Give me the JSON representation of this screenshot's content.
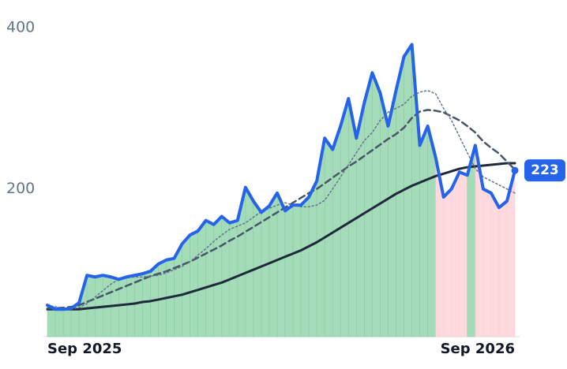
{
  "chart_data": {
    "type": "line",
    "categories": [
      "Sep 2025",
      null,
      null,
      null,
      null,
      null,
      null,
      null,
      null,
      null,
      null,
      null,
      null,
      null,
      null,
      null,
      null,
      null,
      null,
      null,
      null,
      null,
      null,
      null,
      null,
      null,
      null,
      null,
      null,
      null,
      null,
      null,
      null,
      null,
      null,
      null,
      null,
      null,
      null,
      null,
      null,
      null,
      null,
      null,
      null,
      null,
      null,
      null,
      null,
      null,
      null,
      null,
      null,
      null,
      null,
      null,
      null,
      null,
      null,
      "Sep 2026"
    ],
    "series": [
      {
        "color": "#2563eb",
        "style": "solid",
        "width": 4,
        "badge": true,
        "values": [
          56,
          51,
          51,
          52,
          59,
          93,
          91,
          93,
          91,
          88,
          91,
          93,
          95,
          98,
          107,
          112,
          114,
          132,
          143,
          148,
          161,
          156,
          166,
          158,
          161,
          202,
          185,
          171,
          179,
          195,
          173,
          180,
          180,
          190,
          210,
          263,
          249,
          278,
          312,
          263,
          307,
          344,
          319,
          278,
          322,
          364,
          379,
          254,
          278,
          239,
          190,
          200,
          221,
          217,
          254,
          200,
          195,
          177,
          185,
          223
        ]
      },
      {
        "color": "#64748b",
        "style": "dotted",
        "width": 1.5,
        "values": [
          56,
          54,
          53,
          52,
          53,
          58,
          66,
          74,
          82,
          88,
          90,
          91,
          91,
          92,
          93,
          96,
          100,
          104,
          110,
          118,
          126,
          135,
          143,
          150,
          154,
          158,
          165,
          172,
          176,
          180,
          183,
          180,
          178,
          178,
          180,
          186,
          200,
          215,
          230,
          245,
          260,
          270,
          285,
          295,
          300,
          305,
          315,
          320,
          322,
          318,
          300,
          285,
          265,
          245,
          225,
          215,
          210,
          205,
          200,
          195
        ]
      },
      {
        "color": "#475569",
        "style": "dashed",
        "width": 2.5,
        "values": [
          52,
          52,
          53,
          54,
          56,
          60,
          64,
          68,
          72,
          76,
          80,
          84,
          88,
          92,
          95,
          98,
          102,
          106,
          110,
          115,
          120,
          125,
          130,
          136,
          141,
          147,
          153,
          159,
          165,
          171,
          177,
          183,
          189,
          195,
          200,
          207,
          214,
          221,
          228,
          234,
          241,
          248,
          255,
          262,
          268,
          276,
          288,
          296,
          298,
          297,
          295,
          290,
          285,
          278,
          270,
          259,
          251,
          244,
          234,
          224
        ]
      },
      {
        "color": "#1e293b",
        "style": "solid",
        "width": 3,
        "values": [
          51,
          51,
          51,
          51,
          51,
          52,
          53,
          54,
          55,
          56,
          57,
          58,
          60,
          61,
          63,
          65,
          67,
          69,
          72,
          75,
          78,
          81,
          84,
          88,
          92,
          96,
          100,
          104,
          108,
          112,
          116,
          120,
          124,
          129,
          134,
          140,
          146,
          152,
          158,
          164,
          170,
          176,
          182,
          188,
          194,
          199,
          204,
          208,
          212,
          216,
          219,
          222,
          225,
          227,
          228,
          229,
          230,
          231,
          232,
          232
        ]
      }
    ],
    "area_colors": {
      "above": "#86cfa0",
      "below": "#fecdd3"
    },
    "ylim": [
      17,
      400
    ],
    "yticks": [
      200,
      400
    ],
    "grid": false
  }
}
